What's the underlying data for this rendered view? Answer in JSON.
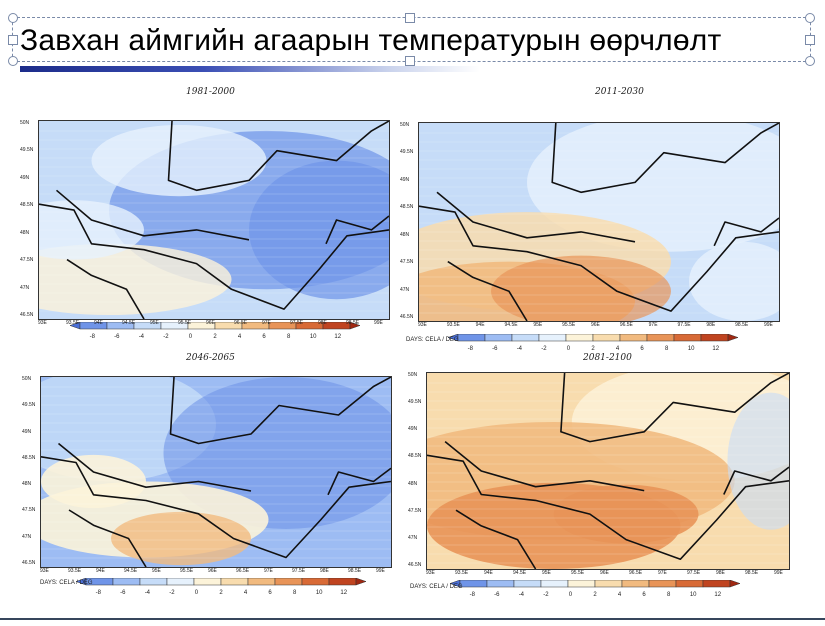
{
  "slide": {
    "title": "Завхан аймгийн агаарын температурын өөрчлөлт"
  },
  "panels": [
    {
      "title": "1981-2000",
      "tone": "cold",
      "colorbar_note": ""
    },
    {
      "title": "2011-2030",
      "tone": "warm",
      "colorbar_note": "DAYS: CELA / DEG"
    },
    {
      "title": "2046-2065",
      "tone": "mixed",
      "colorbar_note": "DAYS: CELA / DEG"
    },
    {
      "title": "2081-2100",
      "tone": "hot",
      "colorbar_note": "DAYS: CELA / DEG"
    }
  ],
  "colorbar": {
    "ticks": [
      "-8",
      "-6",
      "-4",
      "-2",
      "0",
      "2",
      "4",
      "6",
      "8",
      "10",
      "12"
    ],
    "colors": [
      "#4a6fd8",
      "#6f94e8",
      "#9dbcf3",
      "#c6dcf8",
      "#e6f1fc",
      "#fcf3d9",
      "#f8dcae",
      "#f1ba7f",
      "#e89458",
      "#d86a36",
      "#c04420",
      "#a02812"
    ]
  },
  "axes": {
    "y_ticks": [
      "50N",
      "49.5N",
      "49N",
      "48.5N",
      "48N",
      "47.5N",
      "47N",
      "46.5N"
    ],
    "x_ticks": [
      "93E",
      "93.5E",
      "94E",
      "94.5E",
      "95E",
      "95.5E",
      "96E",
      "96.5E",
      "97E",
      "97.5E",
      "98E",
      "98.5E",
      "99E"
    ]
  },
  "icons": {
    "handle": "resize-handle-icon"
  }
}
